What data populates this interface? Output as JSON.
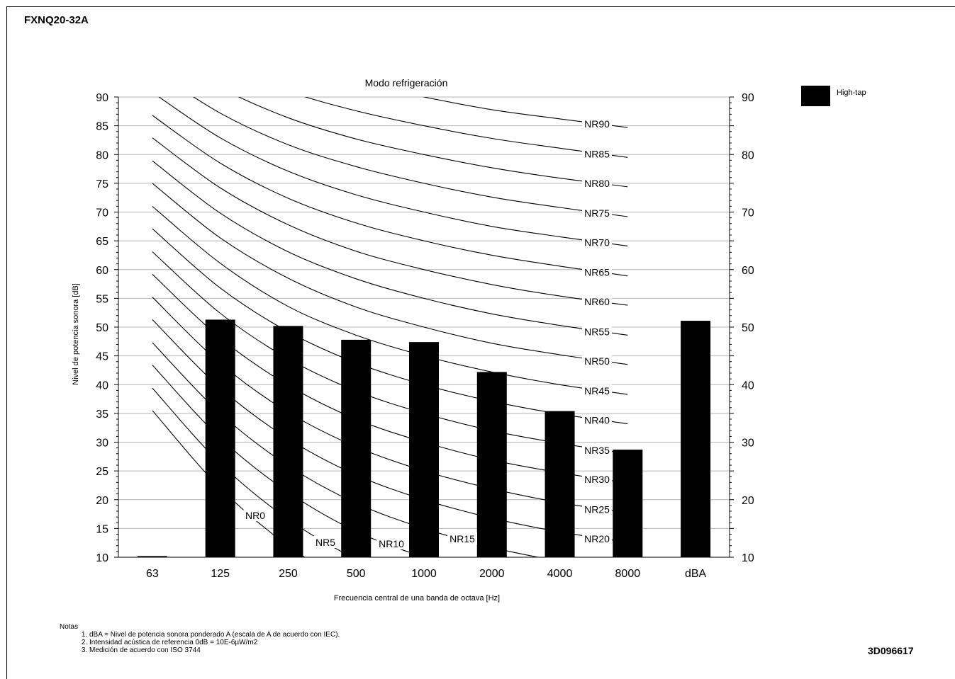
{
  "header": {
    "model": "FXNQ20-32A",
    "doc_ref": "3D096617"
  },
  "notes": {
    "title": "Notas",
    "items": [
      "dBA = Nivel de potencia sonora ponderado A (escala de A de acuerdo con IEC).",
      "Intensidad acústica de referencia 0dB = 10E-6µW/m2",
      "Medición de acuerdo con ISO 3744"
    ]
  },
  "chart_data": {
    "type": "bar",
    "title": "Modo refrigeración",
    "xlabel": "Frecuencia central de una banda de octava [Hz]",
    "ylabel": "Nivel de potencia sonora [dB]",
    "categories": [
      "63",
      "125",
      "250",
      "500",
      "1000",
      "2000",
      "4000",
      "8000",
      "dBA"
    ],
    "series": [
      {
        "name": "High-tap",
        "color": "#000000",
        "values": [
          10.2,
          51.3,
          50.2,
          47.8,
          47.4,
          42.2,
          35.4,
          28.7,
          51.1
        ]
      }
    ],
    "ylim": [
      10,
      90
    ],
    "yticks": [
      "10",
      "15",
      "20",
      "25",
      "30",
      "35",
      "40",
      "45",
      "50",
      "55",
      "60",
      "65",
      "70",
      "75",
      "80",
      "85",
      "90"
    ],
    "yticks_right": [
      "10",
      "20",
      "30",
      "40",
      "50",
      "60",
      "70",
      "80",
      "90"
    ],
    "grid": true,
    "legend_position": "right",
    "nr_curves": {
      "labels": [
        "NR0",
        "NR5",
        "NR10",
        "NR15",
        "NR20",
        "NR25",
        "NR30",
        "NR35",
        "NR40",
        "NR45",
        "NR50",
        "NR55",
        "NR60",
        "NR65",
        "NR70",
        "NR75",
        "NR80",
        "NR85",
        "NR90"
      ],
      "points": [
        [
          35.5,
          22.0,
          12.0,
          4.8,
          0.0,
          -3.5,
          -6.1,
          -8.0
        ],
        [
          39.4,
          26.3,
          16.6,
          9.7,
          5.0,
          1.6,
          -1.0,
          -2.8
        ],
        [
          43.4,
          30.7,
          21.3,
          14.5,
          10.0,
          6.6,
          4.2,
          2.3
        ],
        [
          47.3,
          35.0,
          25.9,
          19.4,
          15.0,
          11.7,
          9.3,
          7.4
        ],
        [
          51.3,
          39.4,
          30.6,
          24.3,
          20.0,
          16.8,
          14.4,
          12.6
        ],
        [
          55.2,
          43.7,
          35.2,
          29.2,
          25.0,
          21.9,
          19.5,
          17.7
        ],
        [
          59.2,
          48.1,
          39.9,
          34.0,
          30.0,
          26.9,
          24.7,
          22.9
        ],
        [
          63.1,
          52.4,
          44.5,
          38.9,
          35.0,
          32.0,
          29.8,
          28.0
        ],
        [
          67.1,
          56.8,
          49.2,
          43.8,
          40.0,
          37.1,
          34.9,
          33.2
        ],
        [
          71.0,
          61.1,
          53.6,
          48.6,
          45.0,
          42.2,
          40.0,
          38.3
        ],
        [
          75.0,
          65.5,
          58.5,
          53.5,
          50.0,
          47.2,
          45.2,
          43.5
        ],
        [
          78.9,
          69.8,
          63.1,
          58.4,
          55.0,
          52.3,
          50.3,
          48.6
        ],
        [
          82.9,
          74.2,
          67.8,
          63.2,
          60.0,
          57.4,
          55.4,
          53.8
        ],
        [
          86.8,
          78.5,
          72.4,
          68.1,
          65.0,
          62.5,
          60.6,
          58.9
        ],
        [
          90.8,
          82.9,
          77.1,
          73.0,
          70.0,
          67.5,
          65.7,
          64.1
        ],
        [
          94.7,
          87.2,
          81.7,
          77.9,
          75.0,
          72.6,
          70.8,
          69.2
        ],
        [
          98.6,
          91.6,
          86.4,
          82.7,
          80.0,
          77.7,
          75.9,
          74.4
        ],
        [
          102.6,
          95.9,
          91.0,
          87.6,
          85.0,
          82.8,
          81.1,
          79.5
        ],
        [
          106.5,
          100.3,
          95.7,
          92.5,
          90.0,
          87.8,
          86.2,
          84.7
        ]
      ]
    }
  }
}
